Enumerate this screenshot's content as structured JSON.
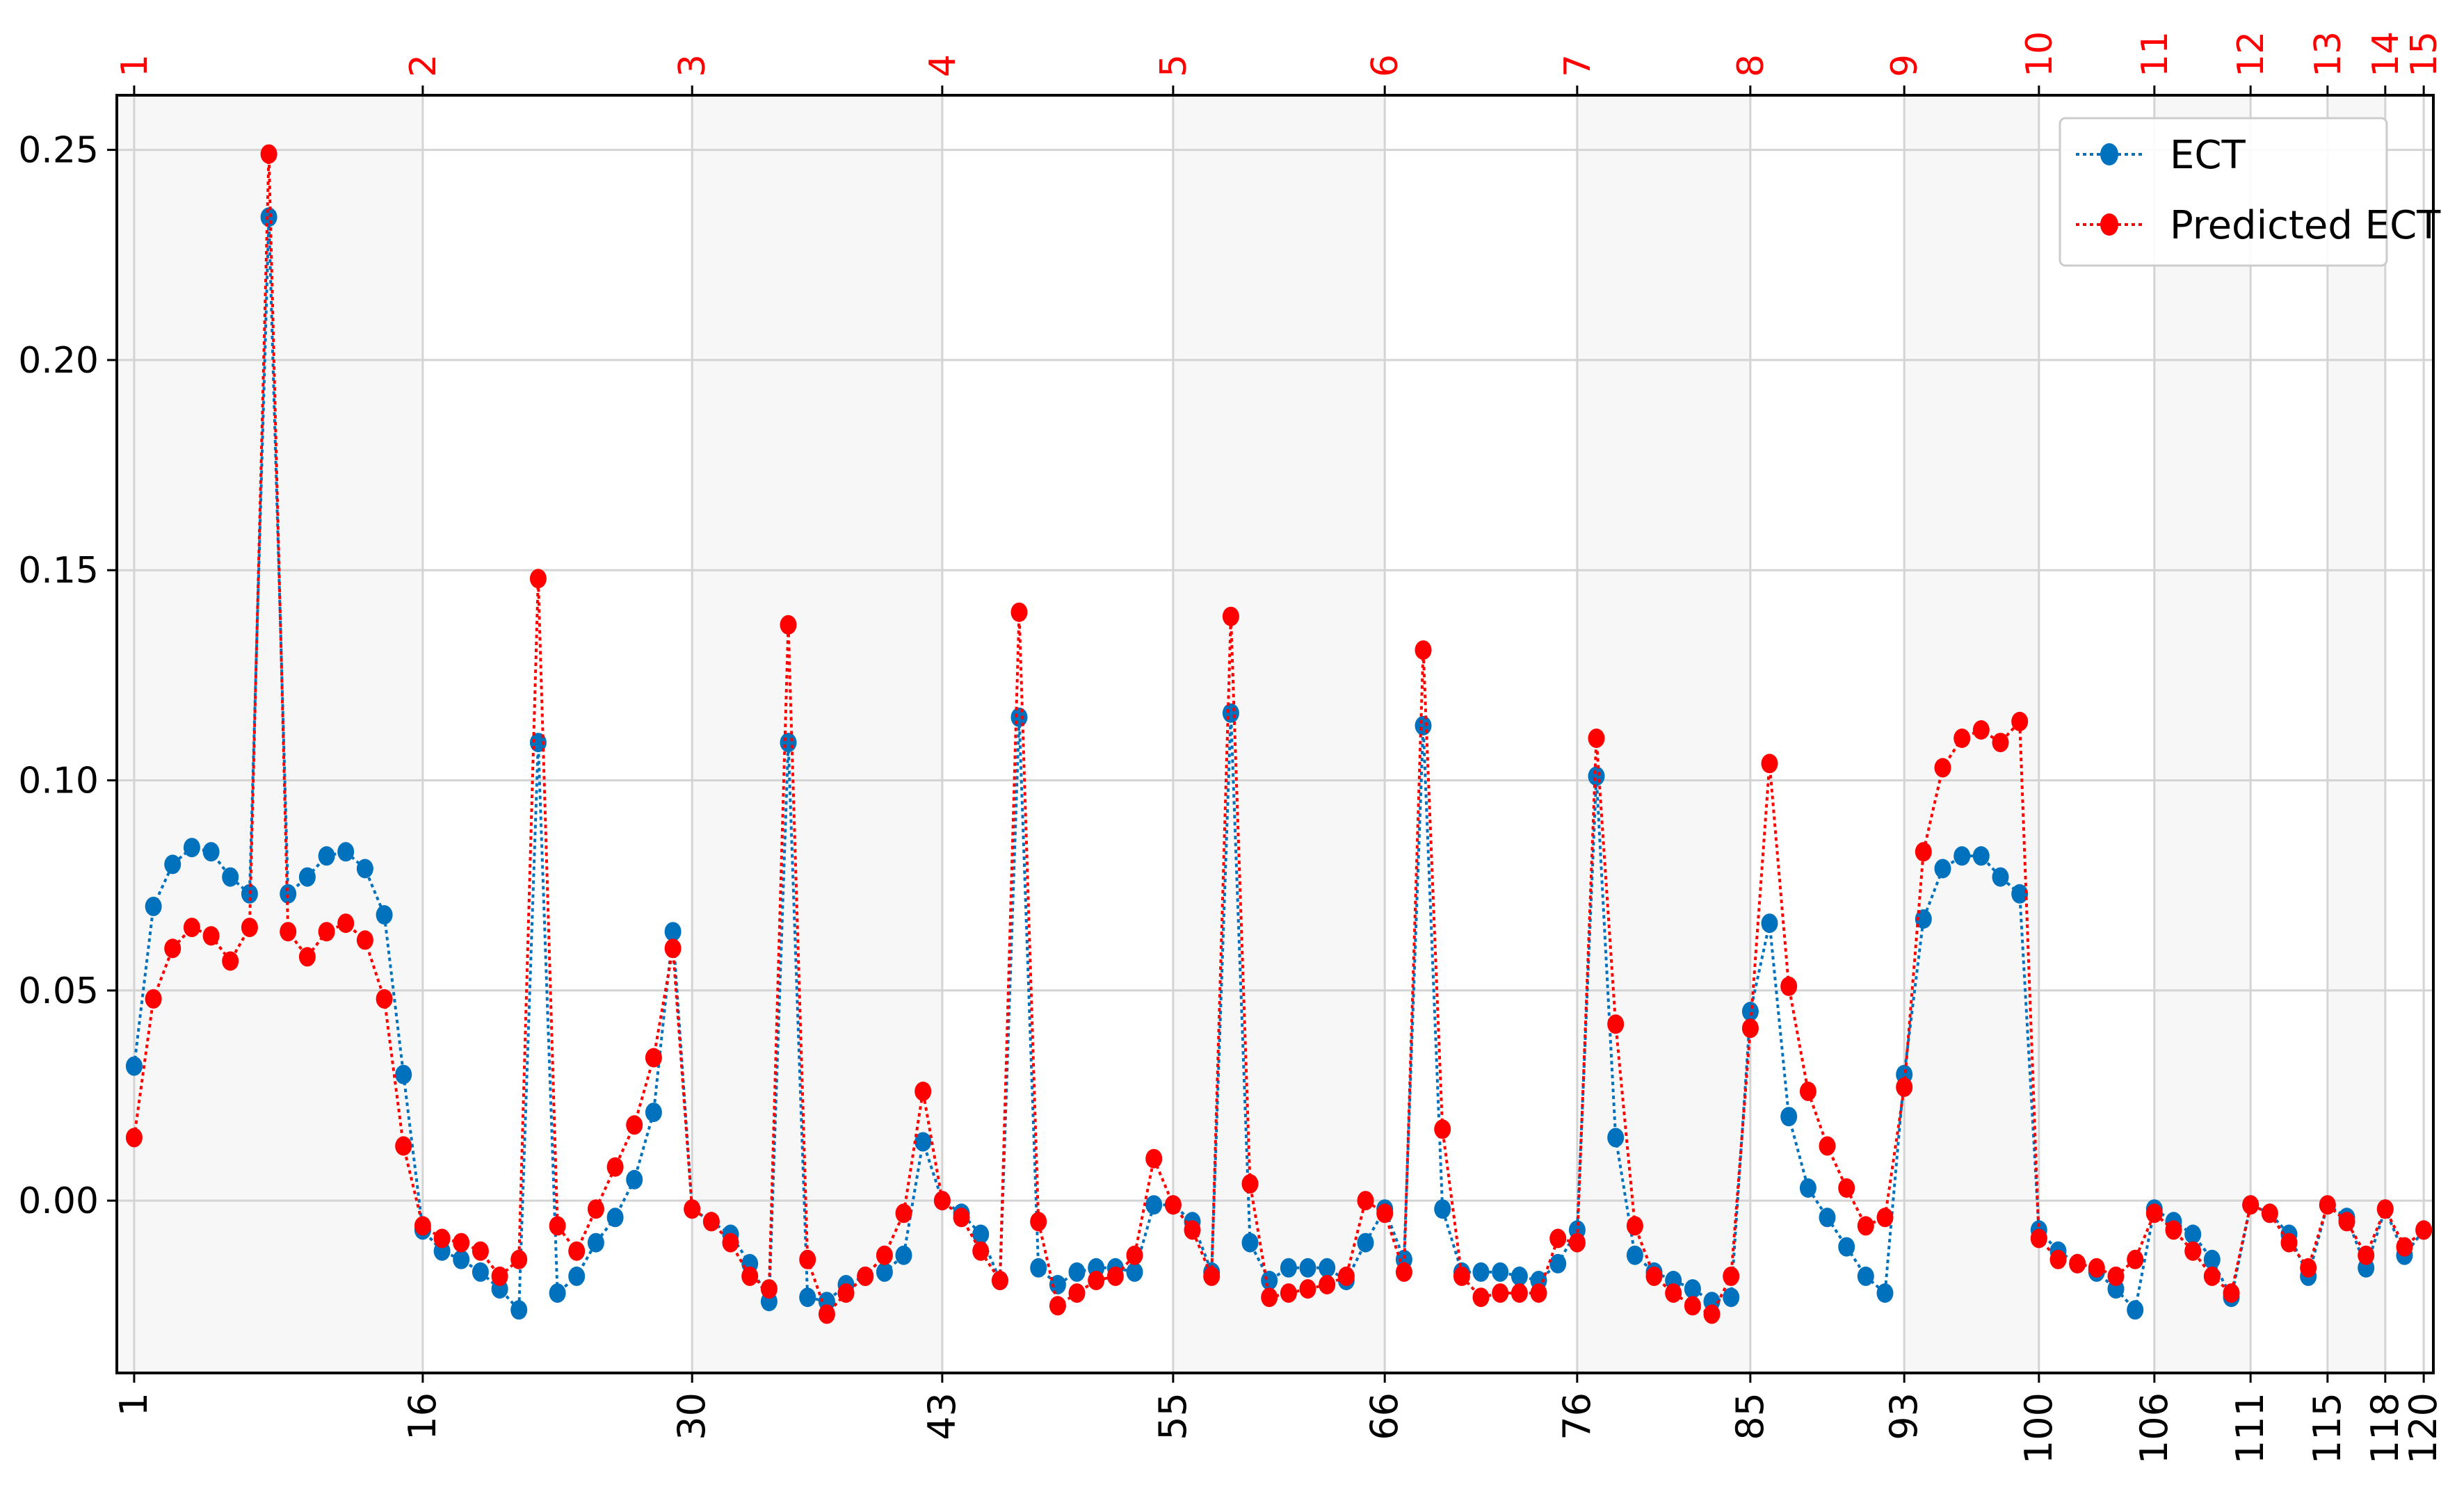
{
  "chart_data": {
    "type": "line",
    "title": "",
    "xlabel": "",
    "ylabel": "",
    "xlim": [
      0.1,
      120.5
    ],
    "ylim": [
      -0.041,
      0.263
    ],
    "grid": true,
    "legend_position": "top-right",
    "x_ticks_bottom": [
      1,
      16,
      30,
      43,
      55,
      66,
      76,
      85,
      93,
      100,
      106,
      111,
      115,
      118,
      120
    ],
    "x_ticks_top": {
      "positions": [
        1,
        16,
        30,
        43,
        55,
        66,
        76,
        85,
        93,
        100,
        106,
        111,
        115,
        118,
        120
      ],
      "labels": [
        "1",
        "2",
        "3",
        "4",
        "5",
        "6",
        "7",
        "8",
        "9",
        "10",
        "11",
        "12",
        "13",
        "14",
        "15"
      ]
    },
    "y_ticks": [
      "0.00",
      "0.05",
      "0.10",
      "0.15",
      "0.20",
      "0.25"
    ],
    "y_tick_values": [
      0.0,
      0.05,
      0.1,
      0.15,
      0.2,
      0.25
    ],
    "shaded_spans": [
      [
        0.1,
        16
      ],
      [
        30,
        43
      ],
      [
        55,
        66
      ],
      [
        76,
        85
      ],
      [
        93,
        100
      ],
      [
        106,
        111
      ],
      [
        115,
        118
      ]
    ],
    "x": [
      1,
      2,
      3,
      4,
      5,
      6,
      7,
      8,
      9,
      10,
      11,
      12,
      13,
      14,
      15,
      16,
      17,
      18,
      19,
      20,
      21,
      22,
      23,
      24,
      25,
      26,
      27,
      28,
      29,
      30,
      31,
      32,
      33,
      34,
      35,
      36,
      37,
      38,
      39,
      40,
      41,
      42,
      43,
      44,
      45,
      46,
      47,
      48,
      49,
      50,
      51,
      52,
      53,
      54,
      55,
      56,
      57,
      58,
      59,
      60,
      61,
      62,
      63,
      64,
      65,
      66,
      67,
      68,
      69,
      70,
      71,
      72,
      73,
      74,
      75,
      76,
      77,
      78,
      79,
      80,
      81,
      82,
      83,
      84,
      85,
      86,
      87,
      88,
      89,
      90,
      91,
      92,
      93,
      94,
      95,
      96,
      97,
      98,
      99,
      100,
      101,
      102,
      103,
      104,
      105,
      106,
      107,
      108,
      109,
      110,
      111,
      112,
      113,
      114,
      115,
      116,
      117,
      118,
      119,
      120
    ],
    "series": [
      {
        "name": "ECT",
        "color": "#0072bd",
        "values": [
          0.032,
          0.07,
          0.08,
          0.084,
          0.083,
          0.077,
          0.073,
          0.234,
          0.073,
          0.077,
          0.082,
          0.083,
          0.079,
          0.068,
          0.03,
          -0.007,
          -0.012,
          -0.014,
          -0.017,
          -0.021,
          -0.026,
          0.109,
          -0.022,
          -0.018,
          -0.01,
          -0.004,
          0.005,
          0.021,
          0.064,
          -0.002,
          -0.005,
          -0.008,
          -0.015,
          -0.024,
          0.109,
          -0.023,
          -0.024,
          -0.02,
          -0.018,
          -0.017,
          -0.013,
          0.014,
          0.0,
          -0.003,
          -0.008,
          -0.019,
          0.115,
          -0.016,
          -0.02,
          -0.017,
          -0.016,
          -0.016,
          -0.017,
          -0.001,
          -0.001,
          -0.005,
          -0.017,
          0.116,
          -0.01,
          -0.019,
          -0.016,
          -0.016,
          -0.016,
          -0.019,
          -0.01,
          -0.002,
          -0.014,
          0.113,
          -0.002,
          -0.017,
          -0.017,
          -0.017,
          -0.018,
          -0.019,
          -0.015,
          -0.007,
          0.101,
          0.015,
          -0.013,
          -0.017,
          -0.019,
          -0.021,
          -0.024,
          -0.023,
          0.045,
          0.066,
          0.02,
          0.003,
          -0.004,
          -0.011,
          -0.018,
          -0.022,
          0.03,
          0.067,
          0.079,
          0.082,
          0.082,
          0.077,
          0.073,
          -0.007,
          -0.012,
          -0.015,
          -0.017,
          -0.021,
          -0.026,
          -0.002,
          -0.005,
          -0.008,
          -0.014,
          -0.023,
          -0.001,
          -0.003,
          -0.008,
          -0.018,
          -0.001,
          -0.004,
          -0.016,
          -0.002,
          -0.013,
          -0.007
        ]
      },
      {
        "name": "Predicted ECT",
        "color": "#ff0000",
        "values": [
          0.015,
          0.048,
          0.06,
          0.065,
          0.063,
          0.057,
          0.065,
          0.249,
          0.064,
          0.058,
          0.064,
          0.066,
          0.062,
          0.048,
          0.013,
          -0.006,
          -0.009,
          -0.01,
          -0.012,
          -0.018,
          -0.014,
          0.148,
          -0.006,
          -0.012,
          -0.002,
          0.008,
          0.018,
          0.034,
          0.06,
          -0.002,
          -0.005,
          -0.01,
          -0.018,
          -0.021,
          0.137,
          -0.014,
          -0.027,
          -0.022,
          -0.018,
          -0.013,
          -0.003,
          0.026,
          0.0,
          -0.004,
          -0.012,
          -0.019,
          0.14,
          -0.005,
          -0.025,
          -0.022,
          -0.019,
          -0.018,
          -0.013,
          0.01,
          -0.001,
          -0.007,
          -0.018,
          0.139,
          0.004,
          -0.023,
          -0.022,
          -0.021,
          -0.02,
          -0.018,
          0.0,
          -0.003,
          -0.017,
          0.131,
          0.017,
          -0.018,
          -0.023,
          -0.022,
          -0.022,
          -0.022,
          -0.009,
          -0.01,
          0.11,
          0.042,
          -0.006,
          -0.018,
          -0.022,
          -0.025,
          -0.027,
          -0.018,
          0.041,
          0.104,
          0.051,
          0.026,
          0.013,
          0.003,
          -0.006,
          -0.004,
          0.027,
          0.083,
          0.103,
          0.11,
          0.112,
          0.109,
          0.114,
          -0.009,
          -0.014,
          -0.015,
          -0.016,
          -0.018,
          -0.014,
          -0.003,
          -0.007,
          -0.012,
          -0.018,
          -0.022,
          -0.001,
          -0.003,
          -0.01,
          -0.016,
          -0.001,
          -0.005,
          -0.013,
          -0.002,
          -0.011,
          -0.007
        ]
      }
    ]
  }
}
